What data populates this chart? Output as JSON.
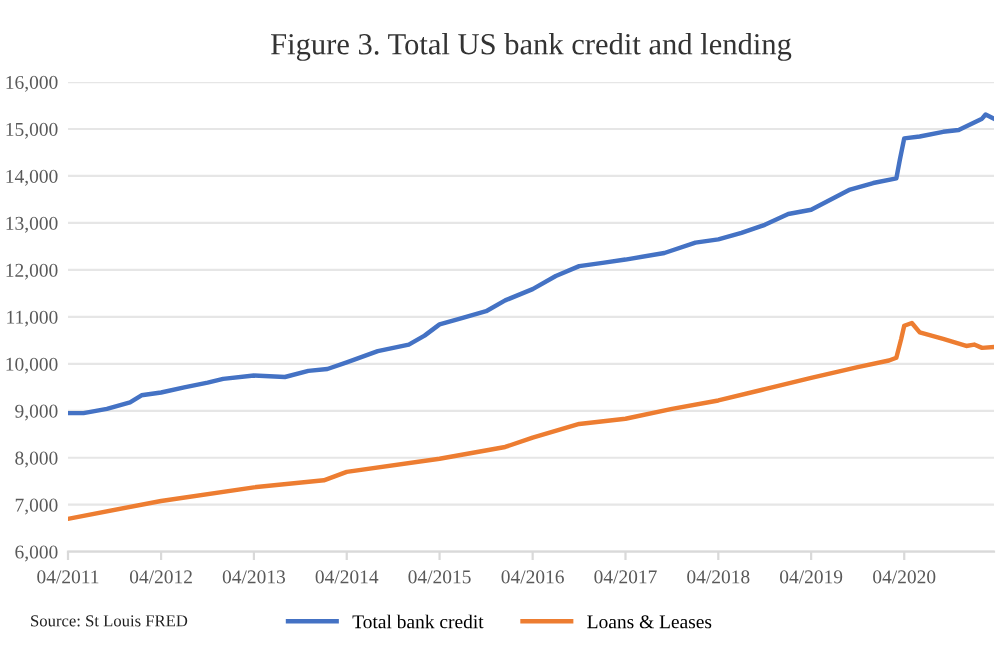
{
  "chart_data": {
    "type": "line",
    "title": "Figure 3. Total US bank credit and lending",
    "annotations": [
      "Source: St Louis FRED"
    ],
    "series": [
      {
        "name": "Total bank credit",
        "color": "#4472c4",
        "x": [
          "2011-04-01",
          "2011-06-01",
          "2011-09-01",
          "2011-12-01",
          "2012-01-15",
          "2012-04-01",
          "2012-07-01",
          "2012-10-01",
          "2012-12-01",
          "2013-04-01",
          "2013-08-01",
          "2013-11-01",
          "2014-01-15",
          "2014-04-01",
          "2014-08-01",
          "2014-12-01",
          "2015-02-01",
          "2015-04-01",
          "2015-07-01",
          "2015-10-01",
          "2015-12-15",
          "2016-04-01",
          "2016-07-01",
          "2016-10-01",
          "2017-01-01",
          "2017-04-01",
          "2017-09-01",
          "2018-01-01",
          "2018-04-01",
          "2018-07-01",
          "2018-10-01",
          "2019-01-01",
          "2019-04-01",
          "2019-09-01",
          "2019-12-01",
          "2020-03-01",
          "2020-03-15",
          "2020-04-01",
          "2020-06-01",
          "2020-09-01",
          "2020-11-01",
          "2021-02-01",
          "2021-02-15",
          "2021-03-20"
        ],
        "values": [
          8950,
          8950,
          9040,
          9180,
          9330,
          9390,
          9500,
          9600,
          9680,
          9750,
          9720,
          9850,
          9890,
          10030,
          10270,
          10410,
          10600,
          10840,
          10980,
          11120,
          11350,
          11590,
          11870,
          12080,
          12150,
          12220,
          12360,
          12580,
          12650,
          12790,
          12960,
          13190,
          13280,
          13710,
          13850,
          13950,
          14350,
          14800,
          14840,
          14940,
          14980,
          15220,
          15310,
          15220
        ]
      },
      {
        "name": "Loans & Leases",
        "color": "#ed7d31",
        "x": [
          "2011-04-01",
          "2012-04-01",
          "2013-04-01",
          "2014-01-01",
          "2014-04-01",
          "2015-04-01",
          "2015-12-15",
          "2016-04-01",
          "2016-10-01",
          "2017-04-01",
          "2017-10-01",
          "2018-04-01",
          "2018-10-01",
          "2019-04-01",
          "2019-10-01",
          "2020-02-01",
          "2020-03-01",
          "2020-03-20",
          "2020-04-01",
          "2020-05-01",
          "2020-06-01",
          "2020-09-01",
          "2020-12-01",
          "2021-01-01",
          "2021-02-01",
          "2021-03-20"
        ],
        "values": [
          6700,
          7080,
          7370,
          7520,
          7700,
          7980,
          8230,
          8430,
          8720,
          8830,
          9040,
          9220,
          9460,
          9700,
          9930,
          10070,
          10130,
          10530,
          10810,
          10870,
          10670,
          10530,
          10380,
          10410,
          10340,
          10360
        ]
      }
    ],
    "xlim": [
      "2011-04-01",
      "2021-03-20"
    ],
    "xticks": [
      {
        "value": "2011-04-01",
        "label": "04/2011"
      },
      {
        "value": "2012-04-01",
        "label": "04/2012"
      },
      {
        "value": "2013-04-01",
        "label": "04/2013"
      },
      {
        "value": "2014-04-01",
        "label": "04/2014"
      },
      {
        "value": "2015-04-01",
        "label": "04/2015"
      },
      {
        "value": "2016-04-01",
        "label": "04/2016"
      },
      {
        "value": "2017-04-01",
        "label": "04/2017"
      },
      {
        "value": "2018-04-01",
        "label": "04/2018"
      },
      {
        "value": "2019-04-01",
        "label": "04/2019"
      },
      {
        "value": "2020-04-01",
        "label": "04/2020"
      }
    ],
    "ylim": [
      6000,
      16000
    ],
    "yticks": [
      {
        "value": 6000,
        "label": "6,000"
      },
      {
        "value": 7000,
        "label": "7,000"
      },
      {
        "value": 8000,
        "label": "8,000"
      },
      {
        "value": 9000,
        "label": "9,000"
      },
      {
        "value": 10000,
        "label": "10,000"
      },
      {
        "value": 11000,
        "label": "11,000"
      },
      {
        "value": 12000,
        "label": "12,000"
      },
      {
        "value": 13000,
        "label": "13,000"
      },
      {
        "value": 14000,
        "label": "14,000"
      },
      {
        "value": 15000,
        "label": "15,000"
      },
      {
        "value": 16000,
        "label": "16,000"
      }
    ],
    "grid": "y",
    "legend": "bottom",
    "marker": "none",
    "line_style": "solid"
  }
}
